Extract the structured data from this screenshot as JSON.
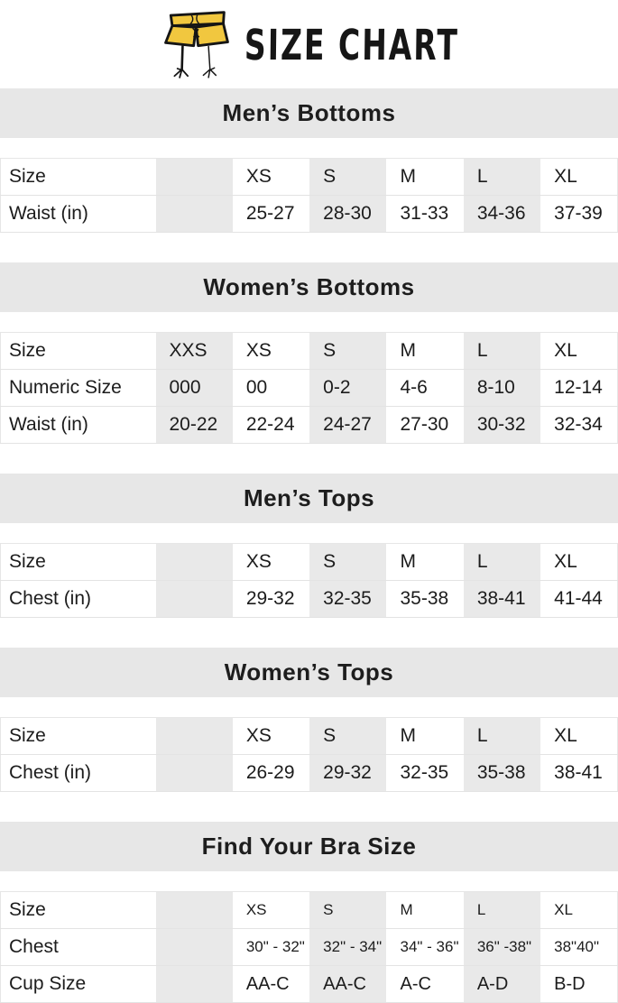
{
  "header": {
    "title": "SIZE CHART",
    "icon": "shorts-with-bird-legs"
  },
  "colors": {
    "section_bar_bg": "#E7E7E7",
    "shaded_column_bg": "#E9E9E9",
    "shorts_yellow": "#F1C73F",
    "outline_black": "#151515",
    "text": "#1C1C1C"
  },
  "sections": [
    {
      "title": "Men’s Bottoms",
      "rows": [
        [
          "Size",
          "",
          "XS",
          "S",
          "M",
          "L",
          "XL"
        ],
        [
          "Waist (in)",
          "",
          "25-27",
          "28-30",
          "31-33",
          "34-36",
          "37-39"
        ]
      ]
    },
    {
      "title": "Women’s Bottoms",
      "rows": [
        [
          "Size",
          "XXS",
          "XS",
          "S",
          "M",
          "L",
          "XL"
        ],
        [
          "Numeric Size",
          "000",
          "00",
          "0-2",
          "4-6",
          "8-10",
          "12-14"
        ],
        [
          "Waist (in)",
          "20-22",
          "22-24",
          "24-27",
          "27-30",
          "30-32",
          "32-34"
        ]
      ]
    },
    {
      "title": "Men’s Tops",
      "rows": [
        [
          "Size",
          "",
          "XS",
          "S",
          "M",
          "L",
          "XL"
        ],
        [
          "Chest (in)",
          "",
          "29-32",
          "32-35",
          "35-38",
          "38-41",
          "41-44"
        ]
      ]
    },
    {
      "title": "Women’s Tops",
      "rows": [
        [
          "Size",
          "",
          "XS",
          "S",
          "M",
          "L",
          "XL"
        ],
        [
          "Chest (in)",
          "",
          "26-29",
          "29-32",
          "32-35",
          "35-38",
          "38-41"
        ]
      ]
    },
    {
      "title": "Find Your Bra Size",
      "rows": [
        [
          "Size",
          "",
          "XS",
          "S",
          "M",
          "L",
          "XL"
        ],
        [
          "Chest",
          "",
          "30\" - 32\"",
          "32\" - 34\"",
          "34\" - 36\"",
          "36\" -38\"",
          "38\"40\""
        ],
        [
          "Cup Size",
          "",
          "AA-C",
          "AA-C",
          "A-C",
          "A-D",
          "B-D"
        ]
      ]
    }
  ]
}
